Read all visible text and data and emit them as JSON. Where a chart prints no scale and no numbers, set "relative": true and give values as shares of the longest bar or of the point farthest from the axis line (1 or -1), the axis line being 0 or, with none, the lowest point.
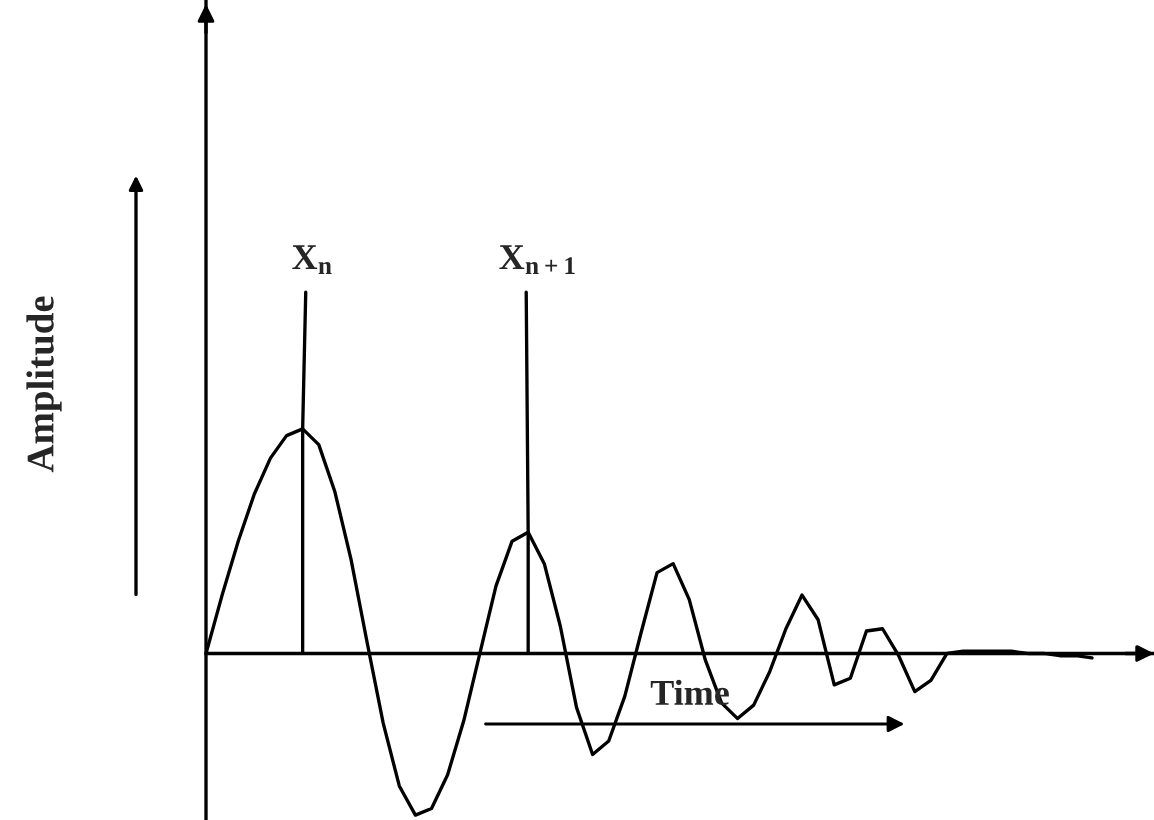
{
  "chart_data": {
    "type": "line",
    "relative": true,
    "xlabel": "Time",
    "ylabel": "Amplitude",
    "categories": [
      null,
      null,
      null,
      null,
      null,
      null,
      null,
      null,
      null,
      null,
      null,
      null,
      null,
      null,
      null,
      null,
      null,
      null,
      null,
      null,
      null,
      null,
      null,
      null,
      null,
      null,
      null,
      null,
      null,
      null,
      null,
      null,
      null,
      null,
      null,
      null,
      null,
      null,
      null,
      null,
      null,
      null,
      null,
      null,
      null,
      null,
      null,
      null,
      null,
      null,
      null,
      null,
      null,
      null,
      null,
      null
    ],
    "series": [
      {
        "color": "#000000",
        "values": [
          0,
          0.26,
          0.5,
          0.71,
          0.87,
          0.97,
          1,
          0.93,
          0.72,
          0.42,
          0.05,
          -0.31,
          -0.59,
          -0.72,
          -0.69,
          -0.54,
          -0.3,
          0,
          0.3,
          0.5,
          0.54,
          0.4,
          0.12,
          -0.24,
          -0.45,
          -0.39,
          -0.19,
          0.09,
          0.36,
          0.4,
          0.24,
          -0.03,
          -0.22,
          -0.29,
          -0.23,
          -0.08,
          0.11,
          0.26,
          0.15,
          -0.14,
          -0.11,
          0.1,
          0.11,
          -0.01,
          -0.17,
          -0.12,
          0,
          0.01,
          0.01,
          0.01,
          0.01,
          0,
          0,
          -0.01,
          -0.01,
          -0.02
        ]
      }
    ],
    "annotations": [
      {
        "text": "X$_{n}$",
        "y": 1
      },
      {
        "text": "X$_{n+1}$",
        "y": 0.54
      }
    ],
    "marker": "none",
    "line_style": "solid"
  }
}
